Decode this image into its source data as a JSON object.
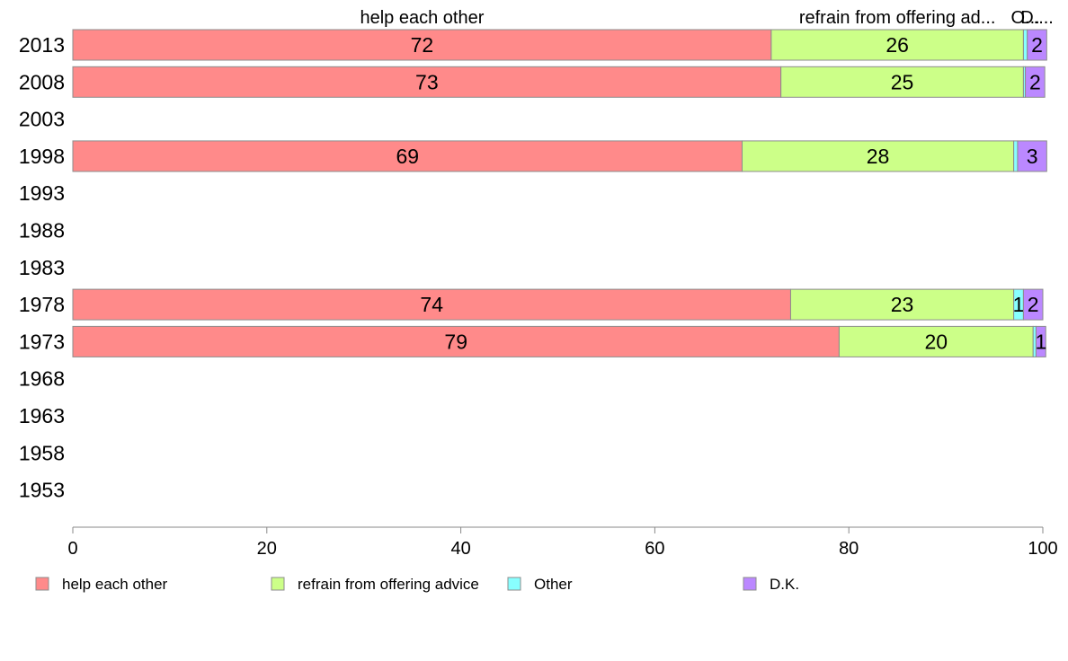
{
  "chart_data": {
    "type": "bar",
    "orientation": "horizontal",
    "stacked": true,
    "categories": [
      "2013",
      "2008",
      "2003",
      "1998",
      "1993",
      "1988",
      "1983",
      "1978",
      "1973",
      "1968",
      "1963",
      "1958",
      "1953"
    ],
    "series": [
      {
        "name": "help each other",
        "color": "#ff8a8a",
        "values": [
          72,
          73,
          null,
          69,
          null,
          null,
          null,
          74,
          79,
          null,
          null,
          null,
          null
        ]
      },
      {
        "name": "refrain from offering advice",
        "color": "#ccff88",
        "values": [
          26,
          25,
          null,
          28,
          null,
          null,
          null,
          23,
          20,
          null,
          null,
          null,
          null
        ]
      },
      {
        "name": "Other",
        "color": "#88ffff",
        "values": [
          0.4,
          0.2,
          null,
          0.4,
          null,
          null,
          null,
          1,
          0.3,
          null,
          null,
          null,
          null
        ]
      },
      {
        "name": "D.K.",
        "color": "#bb88ff",
        "values": [
          2,
          2,
          null,
          3,
          null,
          null,
          null,
          2,
          1,
          null,
          null,
          null,
          null
        ]
      }
    ],
    "bar_labels": [
      [
        "72",
        "26",
        "",
        "2"
      ],
      [
        "73",
        "25",
        "",
        "2"
      ],
      [
        "",
        "",
        "",
        ""
      ],
      [
        "69",
        "28",
        "",
        "3"
      ],
      [
        "",
        "",
        "",
        ""
      ],
      [
        "",
        "",
        "",
        ""
      ],
      [
        "",
        "",
        "",
        ""
      ],
      [
        "74",
        "23",
        "1",
        "2"
      ],
      [
        "79",
        "20",
        "",
        "1"
      ],
      [
        "",
        "",
        "",
        ""
      ],
      [
        "",
        "",
        "",
        ""
      ],
      [
        "",
        "",
        "",
        ""
      ],
      [
        "",
        "",
        "",
        ""
      ]
    ],
    "top_labels": [
      "help each other",
      "refrain from offering ad...",
      "O...",
      "D...."
    ],
    "x_ticks": [
      0,
      20,
      40,
      60,
      80,
      100
    ],
    "xlim": [
      0,
      100
    ],
    "legend_position": "bottom",
    "title": "",
    "xlabel": "",
    "ylabel": ""
  }
}
